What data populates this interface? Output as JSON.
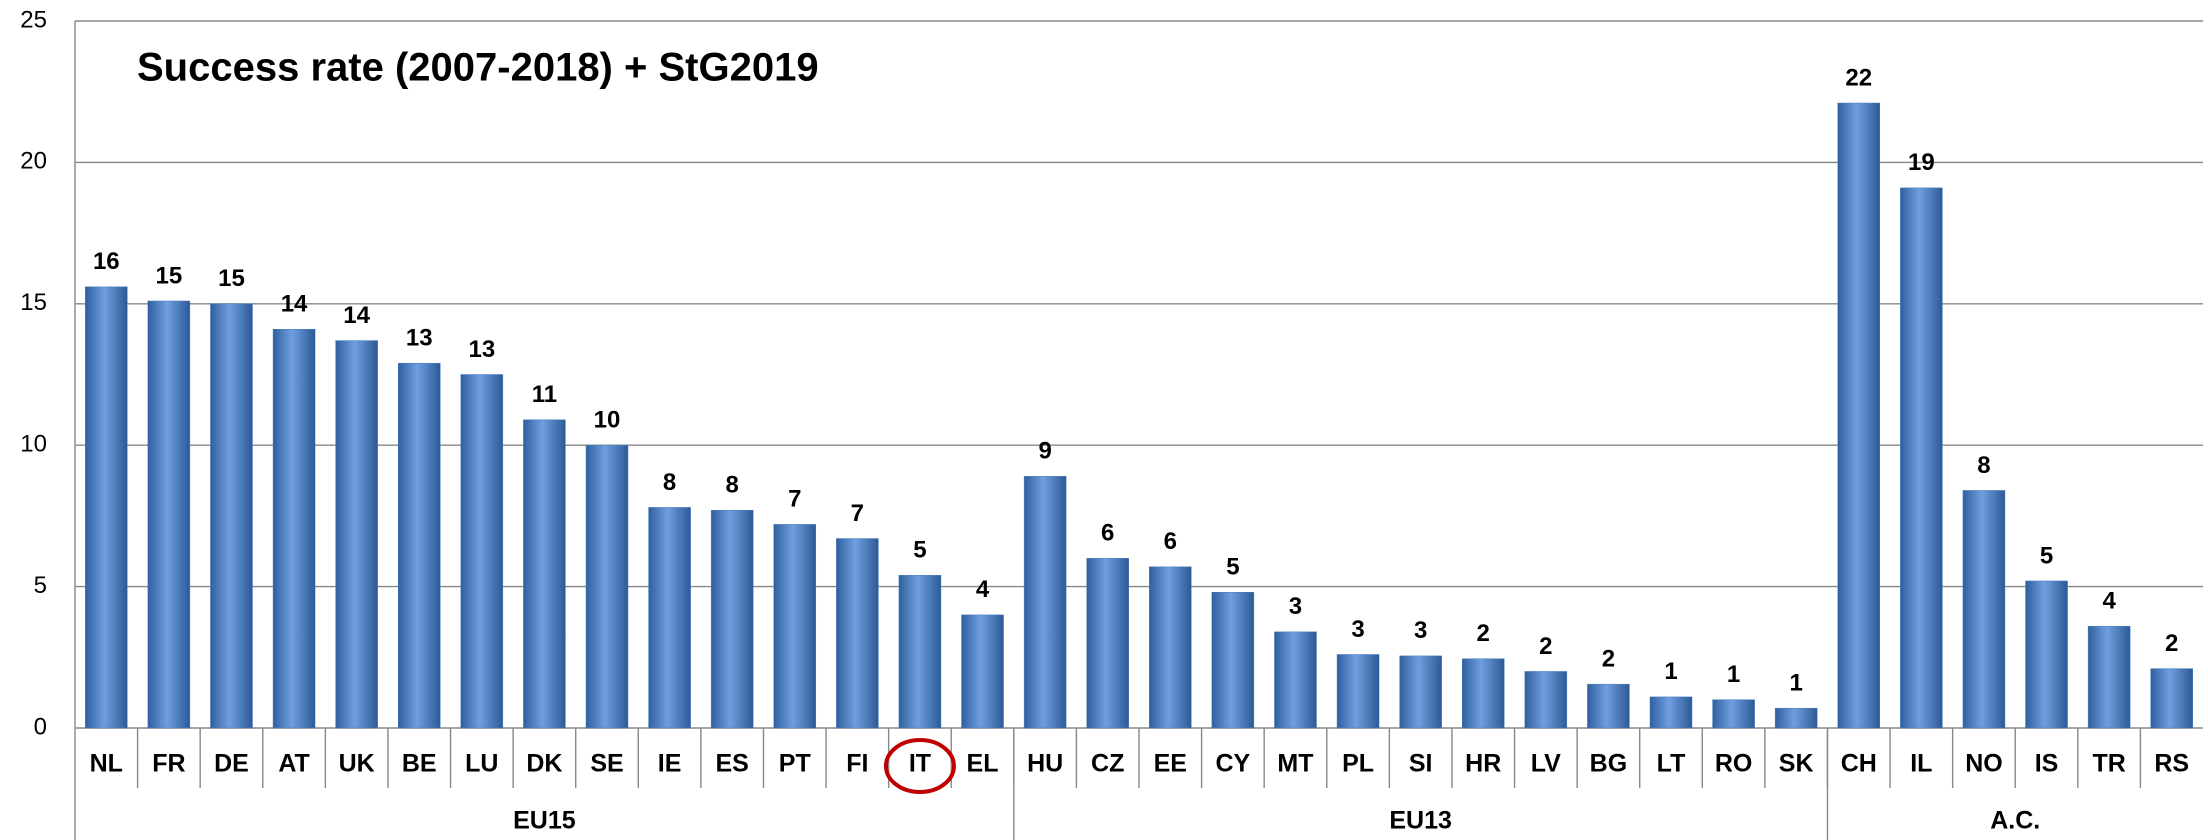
{
  "chart_data": {
    "type": "bar",
    "title": "Success rate (2007-2018) + StG2019",
    "categories": [
      "NL",
      "FR",
      "DE",
      "AT",
      "UK",
      "BE",
      "LU",
      "DK",
      "SE",
      "IE",
      "ES",
      "PT",
      "FI",
      "IT",
      "EL",
      "HU",
      "CZ",
      "EE",
      "CY",
      "MT",
      "PL",
      "SI",
      "HR",
      "LV",
      "BG",
      "LT",
      "RO",
      "SK",
      "CH",
      "IL",
      "NO",
      "IS",
      "TR",
      "RS"
    ],
    "values": [
      15.6,
      15.1,
      15.0,
      14.1,
      13.7,
      12.9,
      12.5,
      10.9,
      10.0,
      7.8,
      7.7,
      7.2,
      6.7,
      5.4,
      4.0,
      8.9,
      6.0,
      5.7,
      4.8,
      3.4,
      2.6,
      2.55,
      2.45,
      2.0,
      1.55,
      1.1,
      1.0,
      0.7,
      22.1,
      19.1,
      8.4,
      5.2,
      3.6,
      2.1
    ],
    "value_labels": [
      "16",
      "15",
      "15",
      "14",
      "14",
      "13",
      "13",
      "11",
      "10",
      "8",
      "8",
      "7",
      "7",
      "5",
      "4",
      "9",
      "6",
      "6",
      "5",
      "3",
      "3",
      "3",
      "2",
      "2",
      "2",
      "1",
      "1",
      "1",
      "22",
      "19",
      "8",
      "5",
      "4",
      "2"
    ],
    "groups": [
      {
        "name": "EU15",
        "size": 15
      },
      {
        "name": "EU13",
        "size": 13
      },
      {
        "name": "A.C.",
        "size": 6
      }
    ],
    "highlight": "IT",
    "highlight_color": "#c00000",
    "color": "#4a7ebb",
    "ylim": [
      0,
      25
    ],
    "yticks": [
      0,
      5,
      10,
      15,
      20,
      25
    ],
    "grid": true
  }
}
